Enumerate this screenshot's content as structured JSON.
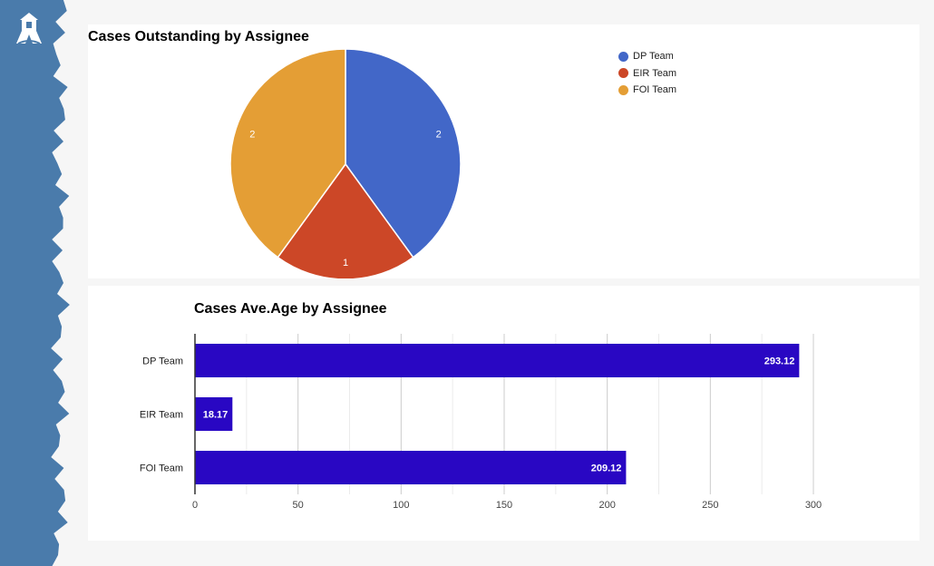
{
  "colors": {
    "sidebar": "#4a7bab",
    "pie": [
      "#4267c8",
      "#cc4727",
      "#e49e35"
    ],
    "bar": "#2907c3"
  },
  "chart_data": [
    {
      "type": "pie",
      "title": "Cases Outstanding by Assignee",
      "legend_position": "right",
      "categories": [
        "DP Team",
        "EIR Team",
        "FOI Team"
      ],
      "values": [
        2,
        1,
        2
      ]
    },
    {
      "type": "bar",
      "orientation": "horizontal",
      "title": "Cases Ave.Age by Assignee",
      "categories": [
        "DP Team",
        "EIR Team",
        "FOI Team"
      ],
      "values": [
        293.12,
        18.17,
        209.12
      ],
      "xlim": [
        0,
        300
      ],
      "xticks": [
        0,
        50,
        100,
        150,
        200,
        250,
        300
      ],
      "grid": true
    }
  ]
}
